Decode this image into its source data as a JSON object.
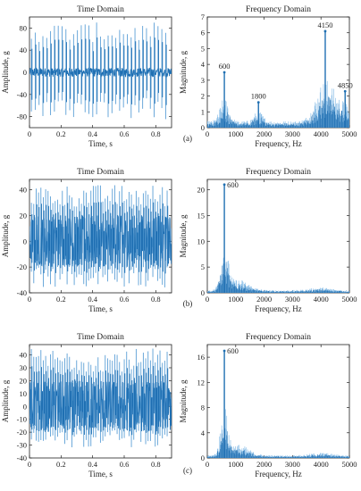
{
  "chart_data": [
    {
      "panel": "(a)",
      "time_domain": {
        "type": "line",
        "title": "Time Domain",
        "xlabel": "Time, s",
        "ylabel": "Amplitude, g",
        "xlim": [
          0,
          0.9
        ],
        "ylim": [
          -100,
          100
        ],
        "xticks": [
          0,
          0.2,
          0.4,
          0.6,
          0.8
        ],
        "yticks": [
          -80,
          -40,
          0,
          40,
          80
        ],
        "max_amplitude": 90,
        "min_amplitude": -85
      },
      "frequency_domain": {
        "type": "bar",
        "title": "Frequency Domain",
        "xlabel": "Frequency, Hz",
        "ylabel": "Magnitude, g",
        "xlim": [
          0,
          5000
        ],
        "ylim": [
          0,
          7
        ],
        "xticks": [
          0,
          1000,
          2000,
          3000,
          4000,
          5000
        ],
        "yticks": [
          0,
          1,
          2,
          3,
          4,
          5,
          6,
          7
        ],
        "peaks": [
          {
            "x": 600,
            "y": 3.5,
            "label": "600"
          },
          {
            "x": 1800,
            "y": 1.6,
            "label": "1800"
          },
          {
            "x": 4150,
            "y": 6.1,
            "label": "4150"
          },
          {
            "x": 4850,
            "y": 2.3,
            "label": "4850"
          }
        ]
      }
    },
    {
      "panel": "(b)",
      "time_domain": {
        "type": "line",
        "title": "Time Domain",
        "xlabel": "Time, s",
        "ylabel": "Amplitude, g",
        "xlim": [
          0,
          0.9
        ],
        "ylim": [
          -40,
          48
        ],
        "xticks": [
          0,
          0.2,
          0.4,
          0.6,
          0.8
        ],
        "yticks": [
          -40,
          -20,
          0,
          20,
          40
        ],
        "max_amplitude": 44,
        "min_amplitude": -36
      },
      "frequency_domain": {
        "type": "bar",
        "title": "Frequency Domain",
        "xlabel": "Frequency, Hz",
        "ylabel": "Magnitude, g",
        "xlim": [
          0,
          5000
        ],
        "ylim": [
          0,
          22
        ],
        "xticks": [
          0,
          1000,
          2000,
          3000,
          4000,
          5000
        ],
        "yticks": [
          0,
          5,
          10,
          15,
          20
        ],
        "peaks": [
          {
            "x": 600,
            "y": 21,
            "label": "600"
          }
        ]
      }
    },
    {
      "panel": "(c)",
      "time_domain": {
        "type": "line",
        "title": "Time Domain",
        "xlabel": "Time, s",
        "ylabel": "Amplitude, g",
        "xlim": [
          0,
          0.9
        ],
        "ylim": [
          -40,
          48
        ],
        "xticks": [
          0,
          0.2,
          0.4,
          0.6,
          0.8
        ],
        "yticks": [
          -40,
          -30,
          -20,
          -10,
          0,
          10,
          20,
          30,
          40
        ],
        "max_amplitude": 45,
        "min_amplitude": -32
      },
      "frequency_domain": {
        "type": "bar",
        "title": "Frequency Domain",
        "xlabel": "Frequency, Hz",
        "ylabel": "Magnitude, g",
        "xlim": [
          0,
          5000
        ],
        "ylim": [
          0,
          18
        ],
        "xticks": [
          0,
          1000,
          2000,
          3000,
          4000,
          5000
        ],
        "yticks": [
          0,
          4,
          8,
          12,
          16
        ],
        "peaks": [
          {
            "x": 600,
            "y": 17,
            "label": "600"
          }
        ]
      }
    }
  ],
  "colors": {
    "signal": "#1f6fb2",
    "signal_light": "#5b9fd6",
    "spectrum": "#1f6fb2",
    "spectrum_fill": "#8ec0e8",
    "axis": "#222222"
  }
}
